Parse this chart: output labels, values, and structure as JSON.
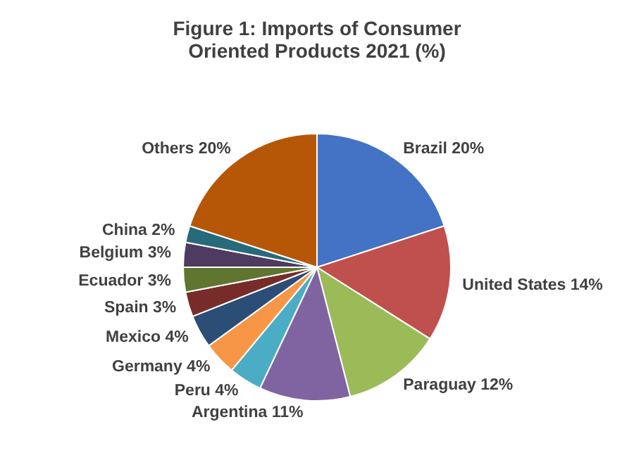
{
  "chart_data": {
    "type": "pie",
    "title": "Figure 1: Imports of Consumer Oriented Products 2021 (%)",
    "categories": [
      "Brazil",
      "United States",
      "Paraguay",
      "Argentina",
      "Peru",
      "Germany",
      "Mexico",
      "Spain",
      "Ecuador",
      "Belgium",
      "China",
      "Others"
    ],
    "values": [
      20,
      14,
      12,
      11,
      4,
      4,
      4,
      3,
      3,
      3,
      2,
      20
    ],
    "value_labels": [
      "20%",
      "14%",
      "12%",
      "11%",
      "4%",
      "4%",
      "4%",
      "3%",
      "3%",
      "3%",
      "2%",
      "20%"
    ],
    "colors": [
      "#4472c4",
      "#c0504d",
      "#9bbb59",
      "#8064a2",
      "#4bacc6",
      "#f79646",
      "#2c4d75",
      "#772c2a",
      "#5f7530",
      "#4d3b62",
      "#276a7c",
      "#b65708"
    ],
    "legend": false
  }
}
